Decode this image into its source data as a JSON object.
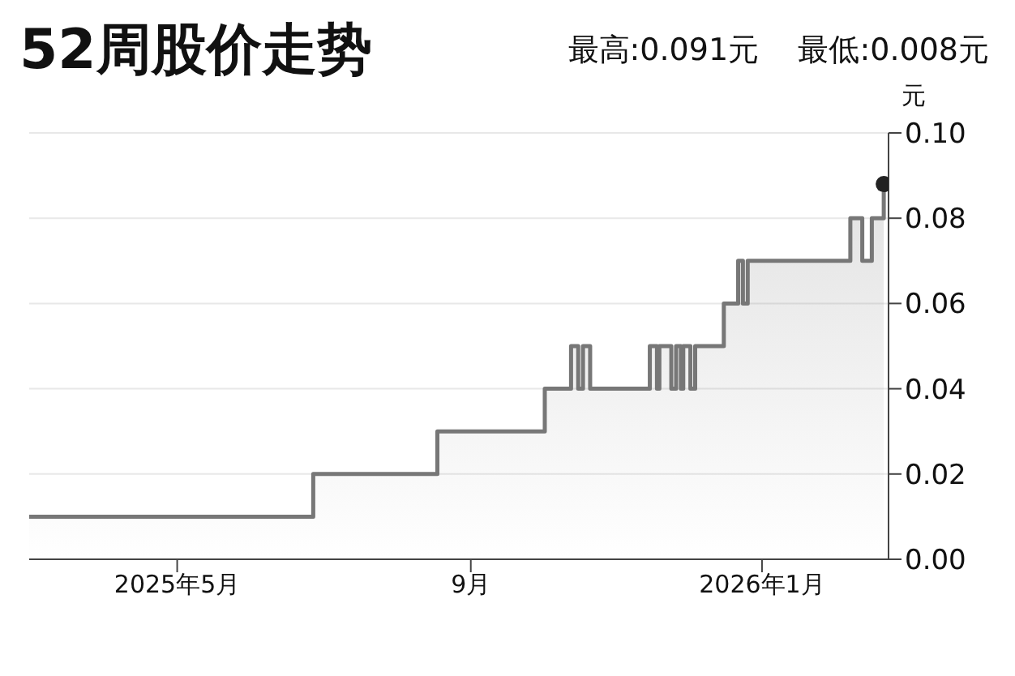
{
  "chart_data": {
    "type": "area",
    "title": "52周股价走势",
    "subtitle": "最高:0.091元    最低:0.008元",
    "ylabel": "元",
    "x": [
      "2025-02-28",
      "2025-06-27",
      "2025-06-27",
      "2025-08-18",
      "2025-08-18",
      "2025-10-02",
      "2025-10-02",
      "2025-10-13",
      "2025-10-13",
      "2025-10-16",
      "2025-10-16",
      "2025-10-18",
      "2025-10-18",
      "2025-10-21",
      "2025-10-21",
      "2025-11-15",
      "2025-11-15",
      "2025-11-18",
      "2025-11-18",
      "2025-11-19",
      "2025-11-19",
      "2025-11-24",
      "2025-11-24",
      "2025-11-26",
      "2025-11-26",
      "2025-11-28",
      "2025-11-28",
      "2025-11-29",
      "2025-11-29",
      "2025-12-02",
      "2025-12-02",
      "2025-12-04",
      "2025-12-04",
      "2025-12-16",
      "2025-12-16",
      "2025-12-22",
      "2025-12-22",
      "2025-12-24",
      "2025-12-24",
      "2025-12-26",
      "2025-12-26",
      "2026-02-07",
      "2026-02-07",
      "2026-02-12",
      "2026-02-12",
      "2026-02-16",
      "2026-02-16",
      "2026-02-21",
      "2026-02-21"
    ],
    "series": [
      {
        "color": "#777777",
        "values": [
          0.01,
          0.01,
          0.02,
          0.02,
          0.03,
          0.03,
          0.04,
          0.04,
          0.05,
          0.05,
          0.04,
          0.04,
          0.05,
          0.05,
          0.04,
          0.04,
          0.05,
          0.05,
          0.04,
          0.04,
          0.05,
          0.05,
          0.04,
          0.04,
          0.05,
          0.05,
          0.04,
          0.04,
          0.05,
          0.05,
          0.04,
          0.04,
          0.05,
          0.05,
          0.06,
          0.06,
          0.07,
          0.07,
          0.06,
          0.06,
          0.07,
          0.07,
          0.08,
          0.08,
          0.07,
          0.07,
          0.08,
          0.08,
          0.088
        ]
      },
      {
        "type": "scatter",
        "color": "#222222",
        "x": [
          "2026-02-21"
        ],
        "values": [
          0.088
        ]
      }
    ],
    "xlim": [
      "2025-02-28",
      "2026-02-23"
    ],
    "xticks": [
      {
        "value": "2025-05-01",
        "label": "2025年5月"
      },
      {
        "value": "2025-09-01",
        "label": "9月"
      },
      {
        "value": "2026-01-01",
        "label": "2026年1月"
      }
    ],
    "ylim": [
      0,
      0.1
    ],
    "yticks": [
      {
        "value": 0,
        "label": "0.00"
      },
      {
        "value": 0.02,
        "label": "0.02"
      },
      {
        "value": 0.04,
        "label": "0.04"
      },
      {
        "value": 0.06,
        "label": "0.06"
      },
      {
        "value": 0.08,
        "label": "0.08"
      },
      {
        "value": 0.1,
        "label": "0.10"
      }
    ],
    "grid": "y",
    "legend": false
  }
}
